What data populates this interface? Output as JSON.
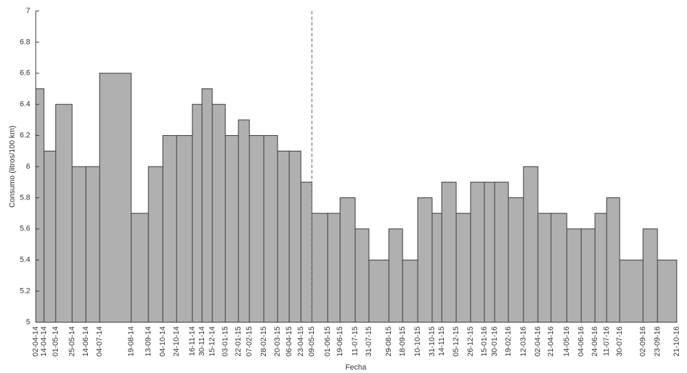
{
  "chart_data": {
    "type": "histogram",
    "x_label": "Fecha",
    "y_label": "Consumo (litros/100 km)",
    "bins": [
      "02-04-14",
      "14-04-14",
      "01-05-14",
      "25-05-14",
      "14-06-14",
      "04-07-14",
      "19-08-14",
      "13-09-14",
      "04-10-14",
      "24-10-14",
      "16-11-14",
      "30-11-14",
      "15-12-14",
      "03-01-15",
      "22-01-15",
      "07-02-15",
      "28-02-15",
      "20-03-15",
      "06-04-15",
      "23-04-15",
      "09-05-15",
      "01-06-15",
      "19-06-15",
      "11-07-15",
      "31-07-15",
      "29-08-15",
      "18-09-15",
      "10-10-15",
      "31-10-15",
      "14-11-15",
      "05-12-15",
      "26-12-15",
      "15-01-16",
      "30-01-16",
      "19-02-16",
      "12-03-16",
      "02-04-16",
      "21-04-16",
      "14-05-16",
      "04-06-16",
      "24-06-16",
      "11-07-16",
      "30-07-16",
      "02-09-16",
      "23-09-16",
      "21-10-16"
    ],
    "values": [
      6.5,
      6.1,
      6.4,
      6.0,
      6.0,
      6.6,
      5.7,
      6.0,
      6.2,
      6.2,
      6.4,
      6.5,
      6.4,
      6.2,
      6.3,
      6.2,
      6.2,
      6.1,
      6.1,
      5.9,
      5.7,
      5.7,
      5.8,
      5.6,
      5.4,
      5.6,
      5.4,
      5.8,
      5.7,
      5.9,
      5.7,
      5.9,
      5.9,
      5.9,
      5.8,
      6.0,
      5.7,
      5.7,
      5.6,
      5.6,
      5.7,
      5.8,
      5.4,
      5.6,
      5.4
    ],
    "color": "#b0b0b0",
    "xlim": [
      "02-04-14",
      "21-10-16"
    ],
    "ylim": [
      5,
      7
    ],
    "yticks": [
      5,
      5.2,
      5.4,
      5.6,
      5.8,
      6,
      6.2,
      6.4,
      6.6,
      6.8,
      7
    ],
    "vline": "09-05-15"
  }
}
